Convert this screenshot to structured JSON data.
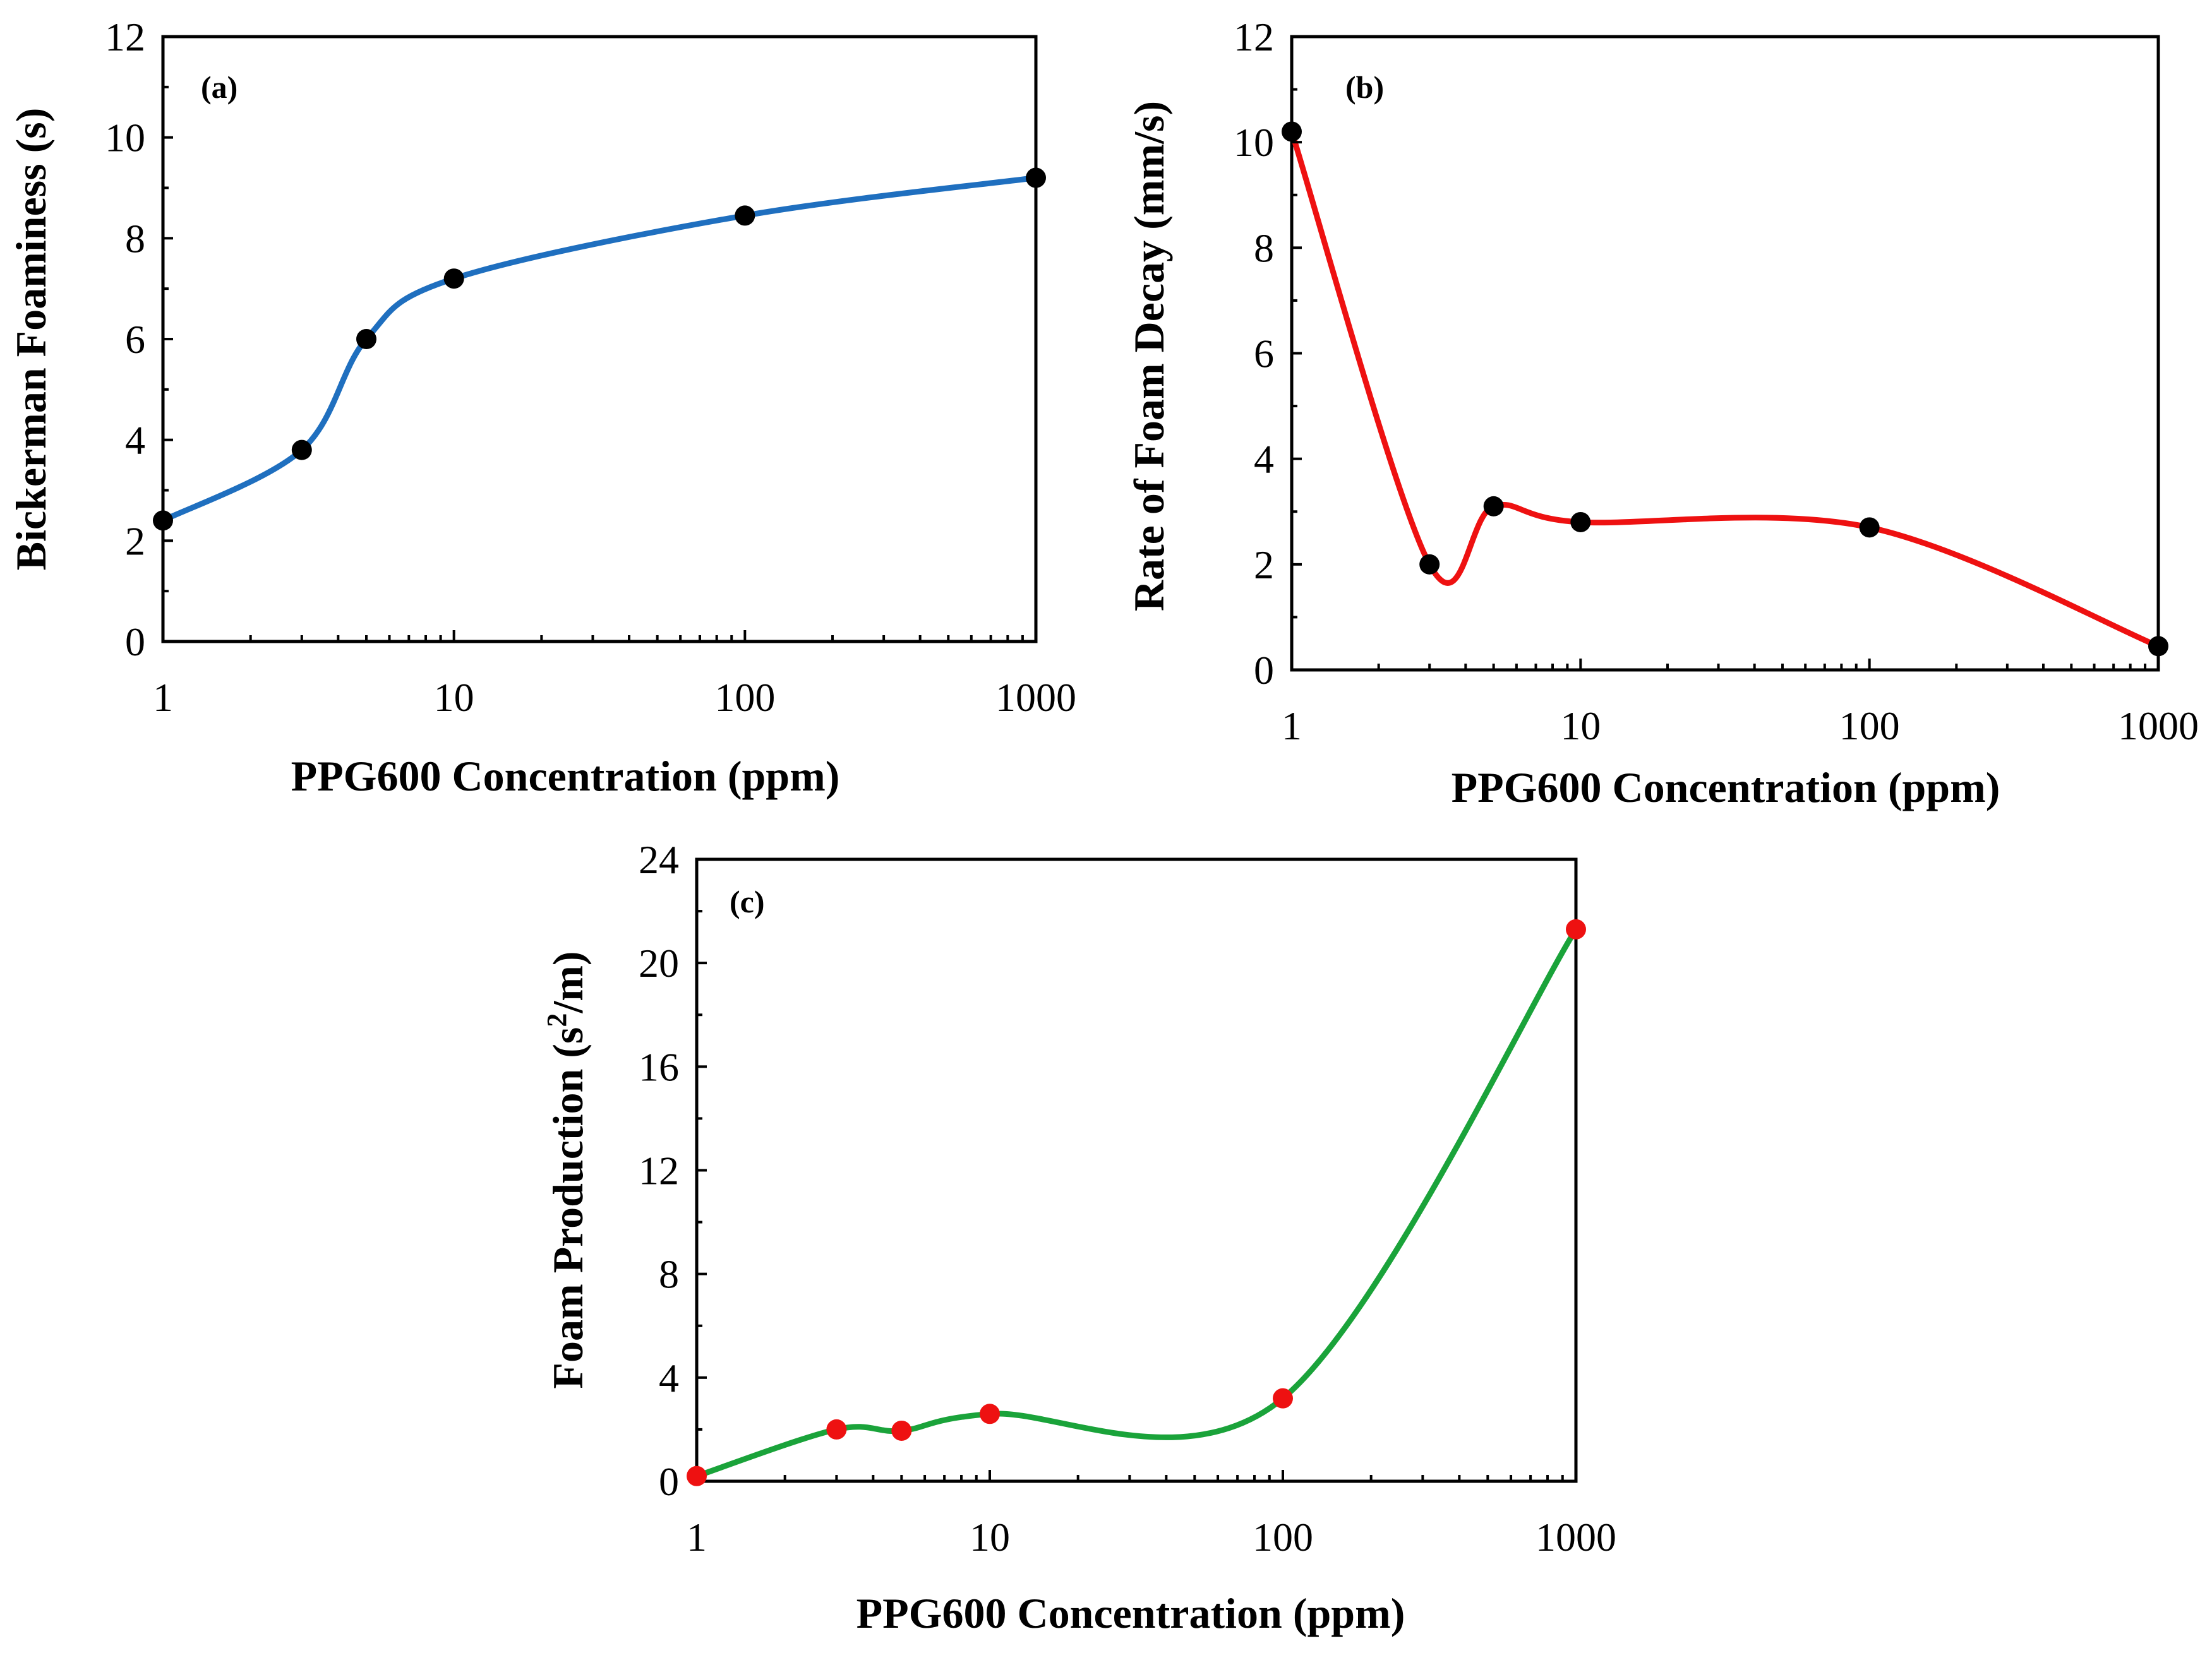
{
  "chart_data": [
    {
      "id": "a",
      "type": "line",
      "panel_label": "(a)",
      "title": "",
      "xlabel": "PPG600 Concentration (ppm)",
      "ylabel": "Bickerman Foaminess (s)",
      "xscale": "log",
      "xlim": [
        1,
        1000
      ],
      "ylim": [
        0,
        12
      ],
      "xticks": [
        1,
        10,
        100,
        1000
      ],
      "xtick_labels": [
        "1",
        "10",
        "100",
        "1000"
      ],
      "yticks": [
        0,
        2,
        4,
        6,
        8,
        10,
        12
      ],
      "ytick_labels": [
        "0",
        "2",
        "4",
        "6",
        "8",
        "10",
        "12"
      ],
      "grid": false,
      "series": [
        {
          "name": "Bickerman Foaminess",
          "x": [
            1,
            3,
            5,
            10,
            100,
            1000
          ],
          "values": [
            2.4,
            3.8,
            6.0,
            7.2,
            8.45,
            9.2
          ]
        }
      ],
      "line_color": "#1f6fbf",
      "marker_color": "#000000"
    },
    {
      "id": "b",
      "type": "line",
      "panel_label": "(b)",
      "title": "",
      "xlabel": "PPG600 Concentration (ppm)",
      "ylabel": "Rate of Foam Decay (mm/s)",
      "xscale": "log",
      "xlim": [
        1,
        1000
      ],
      "ylim": [
        0,
        12
      ],
      "xticks": [
        1,
        10,
        100,
        1000
      ],
      "xtick_labels": [
        "1",
        "10",
        "100",
        "1000"
      ],
      "yticks": [
        0,
        2,
        4,
        6,
        8,
        10,
        12
      ],
      "ytick_labels": [
        "0",
        "2",
        "4",
        "6",
        "8",
        "10",
        "12"
      ],
      "grid": false,
      "series": [
        {
          "name": "Rate of Foam Decay",
          "x": [
            1,
            3,
            5,
            10,
            100,
            1000
          ],
          "values": [
            10.2,
            2.0,
            3.1,
            2.8,
            2.7,
            0.45
          ]
        }
      ],
      "line_color": "#ee1111",
      "marker_color": "#000000"
    },
    {
      "id": "c",
      "type": "line",
      "panel_label": "(c)",
      "title": "",
      "xlabel": "PPG600 Concentration (ppm)",
      "ylabel_main": "Foam Production (s",
      "ylabel_sup": "2",
      "ylabel_end": "/m)",
      "xscale": "log",
      "xlim": [
        1,
        1000
      ],
      "ylim": [
        0,
        24
      ],
      "xticks": [
        1,
        10,
        100,
        1000
      ],
      "xtick_labels": [
        "1",
        "10",
        "100",
        "1000"
      ],
      "yticks": [
        0,
        4,
        8,
        12,
        16,
        20,
        24
      ],
      "ytick_labels": [
        "0",
        "4",
        "8",
        "12",
        "16",
        "20",
        "24"
      ],
      "grid": false,
      "series": [
        {
          "name": "Foam Production",
          "x": [
            1,
            3,
            5,
            10,
            100,
            1000
          ],
          "values": [
            0.2,
            2.0,
            1.95,
            2.6,
            3.2,
            21.3
          ]
        }
      ],
      "line_color": "#1aa33a",
      "marker_color": "#ee1111"
    }
  ]
}
